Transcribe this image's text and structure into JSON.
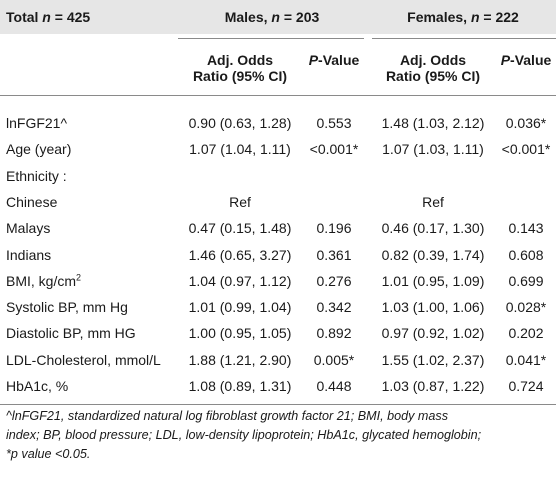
{
  "header": {
    "total_prefix": "Total ",
    "total_n": "n",
    "total_suffix": " = 425",
    "males_prefix": "Males, ",
    "males_n": "n",
    "males_suffix": " = 203",
    "females_prefix": "Females, ",
    "females_n": "n",
    "females_suffix": " = 222",
    "adj_line1": "Adj. Odds",
    "adj_line2": "Ratio (95% CI)",
    "p_italic": "P",
    "p_suffix": "-Value"
  },
  "rows": [
    {
      "label": "lnFGF21^",
      "m_or": "0.90 (0.63, 1.28)",
      "m_p": "0.553",
      "f_or": "1.48 (1.03, 2.12)",
      "f_p": "0.036*"
    },
    {
      "label": "Age (year)",
      "m_or": "1.07 (1.04, 1.11)",
      "m_p": "<0.001*",
      "f_or": "1.07 (1.03, 1.11)",
      "f_p": "<0.001*"
    },
    {
      "label": "Ethnicity :",
      "m_or": "",
      "m_p": "",
      "f_or": "",
      "f_p": ""
    },
    {
      "label": "Chinese",
      "m_or": "Ref",
      "m_p": "",
      "f_or": "Ref",
      "f_p": ""
    },
    {
      "label": "Malays",
      "m_or": "0.47 (0.15, 1.48)",
      "m_p": "0.196",
      "f_or": "0.46 (0.17, 1.30)",
      "f_p": "0.143"
    },
    {
      "label": "Indians",
      "m_or": "1.46 (0.65, 3.27)",
      "m_p": "0.361",
      "f_or": "0.82 (0.39, 1.74)",
      "f_p": "0.608"
    },
    {
      "label": "BMI, kg/cm",
      "label_sup": "2",
      "m_or": "1.04 (0.97, 1.12)",
      "m_p": "0.276",
      "f_or": "1.01 (0.95, 1.09)",
      "f_p": "0.699"
    },
    {
      "label": "Systolic BP, mm Hg",
      "m_or": "1.01 (0.99, 1.04)",
      "m_p": "0.342",
      "f_or": "1.03 (1.00, 1.06)",
      "f_p": "0.028*"
    },
    {
      "label": "Diastolic BP, mm HG",
      "m_or": "1.00 (0.95, 1.05)",
      "m_p": "0.892",
      "f_or": "0.97 (0.92, 1.02)",
      "f_p": "0.202"
    },
    {
      "label": "LDL-Cholesterol, mmol/L",
      "m_or": "1.88 (1.21, 2.90)",
      "m_p": "0.005*",
      "f_or": "1.55 (1.02, 2.37)",
      "f_p": "0.041*"
    },
    {
      "label": "HbA1c, %",
      "m_or": "1.08 (0.89, 1.31)",
      "m_p": "0.448",
      "f_or": "1.03 (0.87, 1.22)",
      "f_p": "0.724"
    }
  ],
  "footnote": {
    "line1": "^lnFGF21, standardized natural log fibroblast growth factor 21; BMI, body mass",
    "line2": "index; BP, blood pressure; LDL, low-density lipoprotein; HbA1c, glycated hemoglobin;",
    "line3": "*p value <0.05."
  }
}
